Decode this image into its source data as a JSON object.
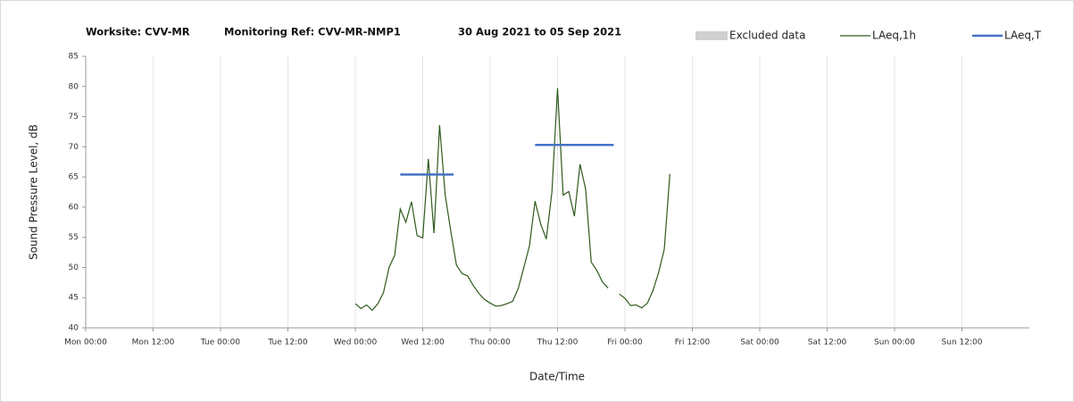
{
  "chart_data": {
    "type": "line",
    "titles": [
      "Worksite: CVV-MR",
      "Monitoring Ref: CVV-MR-NMP1",
      "30 Aug 2021 to 05 Sep 2021"
    ],
    "xlabel": "Date/Time",
    "ylabel": "Sound Pressure Level, dB",
    "xlim": [
      0,
      168
    ],
    "xticks": [
      {
        "value": 0,
        "label": "Mon 00:00"
      },
      {
        "value": 12,
        "label": "Mon 12:00"
      },
      {
        "value": 24,
        "label": "Tue 00:00"
      },
      {
        "value": 36,
        "label": "Tue 12:00"
      },
      {
        "value": 48,
        "label": "Wed 00:00"
      },
      {
        "value": 60,
        "label": "Wed 12:00"
      },
      {
        "value": 72,
        "label": "Thu 00:00"
      },
      {
        "value": 84,
        "label": "Thu 12:00"
      },
      {
        "value": 96,
        "label": "Fri 00:00"
      },
      {
        "value": 108,
        "label": "Fri 12:00"
      },
      {
        "value": 120,
        "label": "Sat 00:00"
      },
      {
        "value": 132,
        "label": "Sat 12:00"
      },
      {
        "value": 144,
        "label": "Sun 00:00"
      },
      {
        "value": 156,
        "label": "Sun 12:00"
      }
    ],
    "ylim": [
      40,
      85
    ],
    "yticks": [
      40,
      45,
      50,
      55,
      60,
      65,
      70,
      75,
      80,
      85
    ],
    "grid": "x",
    "legend": "top-right",
    "series": [
      {
        "name": "Excluded data",
        "color": "#d0d0d0",
        "kind": "area",
        "x": [],
        "values": []
      },
      {
        "name": "LAeq,1h",
        "color": "#2e5a1c",
        "kind": "line",
        "x": [
          48,
          49,
          50,
          51,
          52,
          53,
          54,
          55,
          56,
          57,
          58,
          59,
          60,
          61,
          62,
          63,
          64,
          65,
          66,
          67,
          68,
          69,
          70,
          71,
          72,
          73,
          74,
          75,
          76,
          77,
          78,
          79,
          80,
          81,
          82,
          83,
          84,
          85,
          86,
          87,
          88,
          89,
          90,
          91,
          92,
          93,
          94,
          95,
          96,
          97,
          98,
          99,
          100,
          101,
          102,
          103,
          104
        ],
        "values": [
          44.0,
          43.2,
          43.8,
          42.9,
          44.0,
          45.8,
          50.0,
          52.0,
          59.7,
          57.5,
          60.9,
          55.3,
          54.9,
          68.0,
          55.7,
          73.6,
          62.0,
          56.0,
          50.4,
          49.0,
          48.6,
          47.0,
          45.7,
          44.7,
          44.1,
          43.6,
          43.7,
          44.0,
          44.4,
          46.5,
          50.0,
          53.6,
          61.0,
          57.2,
          54.7,
          62.5,
          79.7,
          62.0,
          62.6,
          58.5,
          67.1,
          63.0,
          50.9,
          49.5,
          47.6,
          46.6,
          null,
          45.6,
          44.9,
          43.7,
          43.8,
          43.3,
          44.1,
          46.2,
          49.2,
          53.0,
          65.5
        ]
      },
      {
        "name": "LAeq,T",
        "color": "#4472c4",
        "kind": "level",
        "x": [
          56,
          65.5,
          null,
          80,
          94
        ],
        "values": [
          65.4,
          65.4,
          null,
          70.3,
          70.3
        ]
      }
    ]
  }
}
